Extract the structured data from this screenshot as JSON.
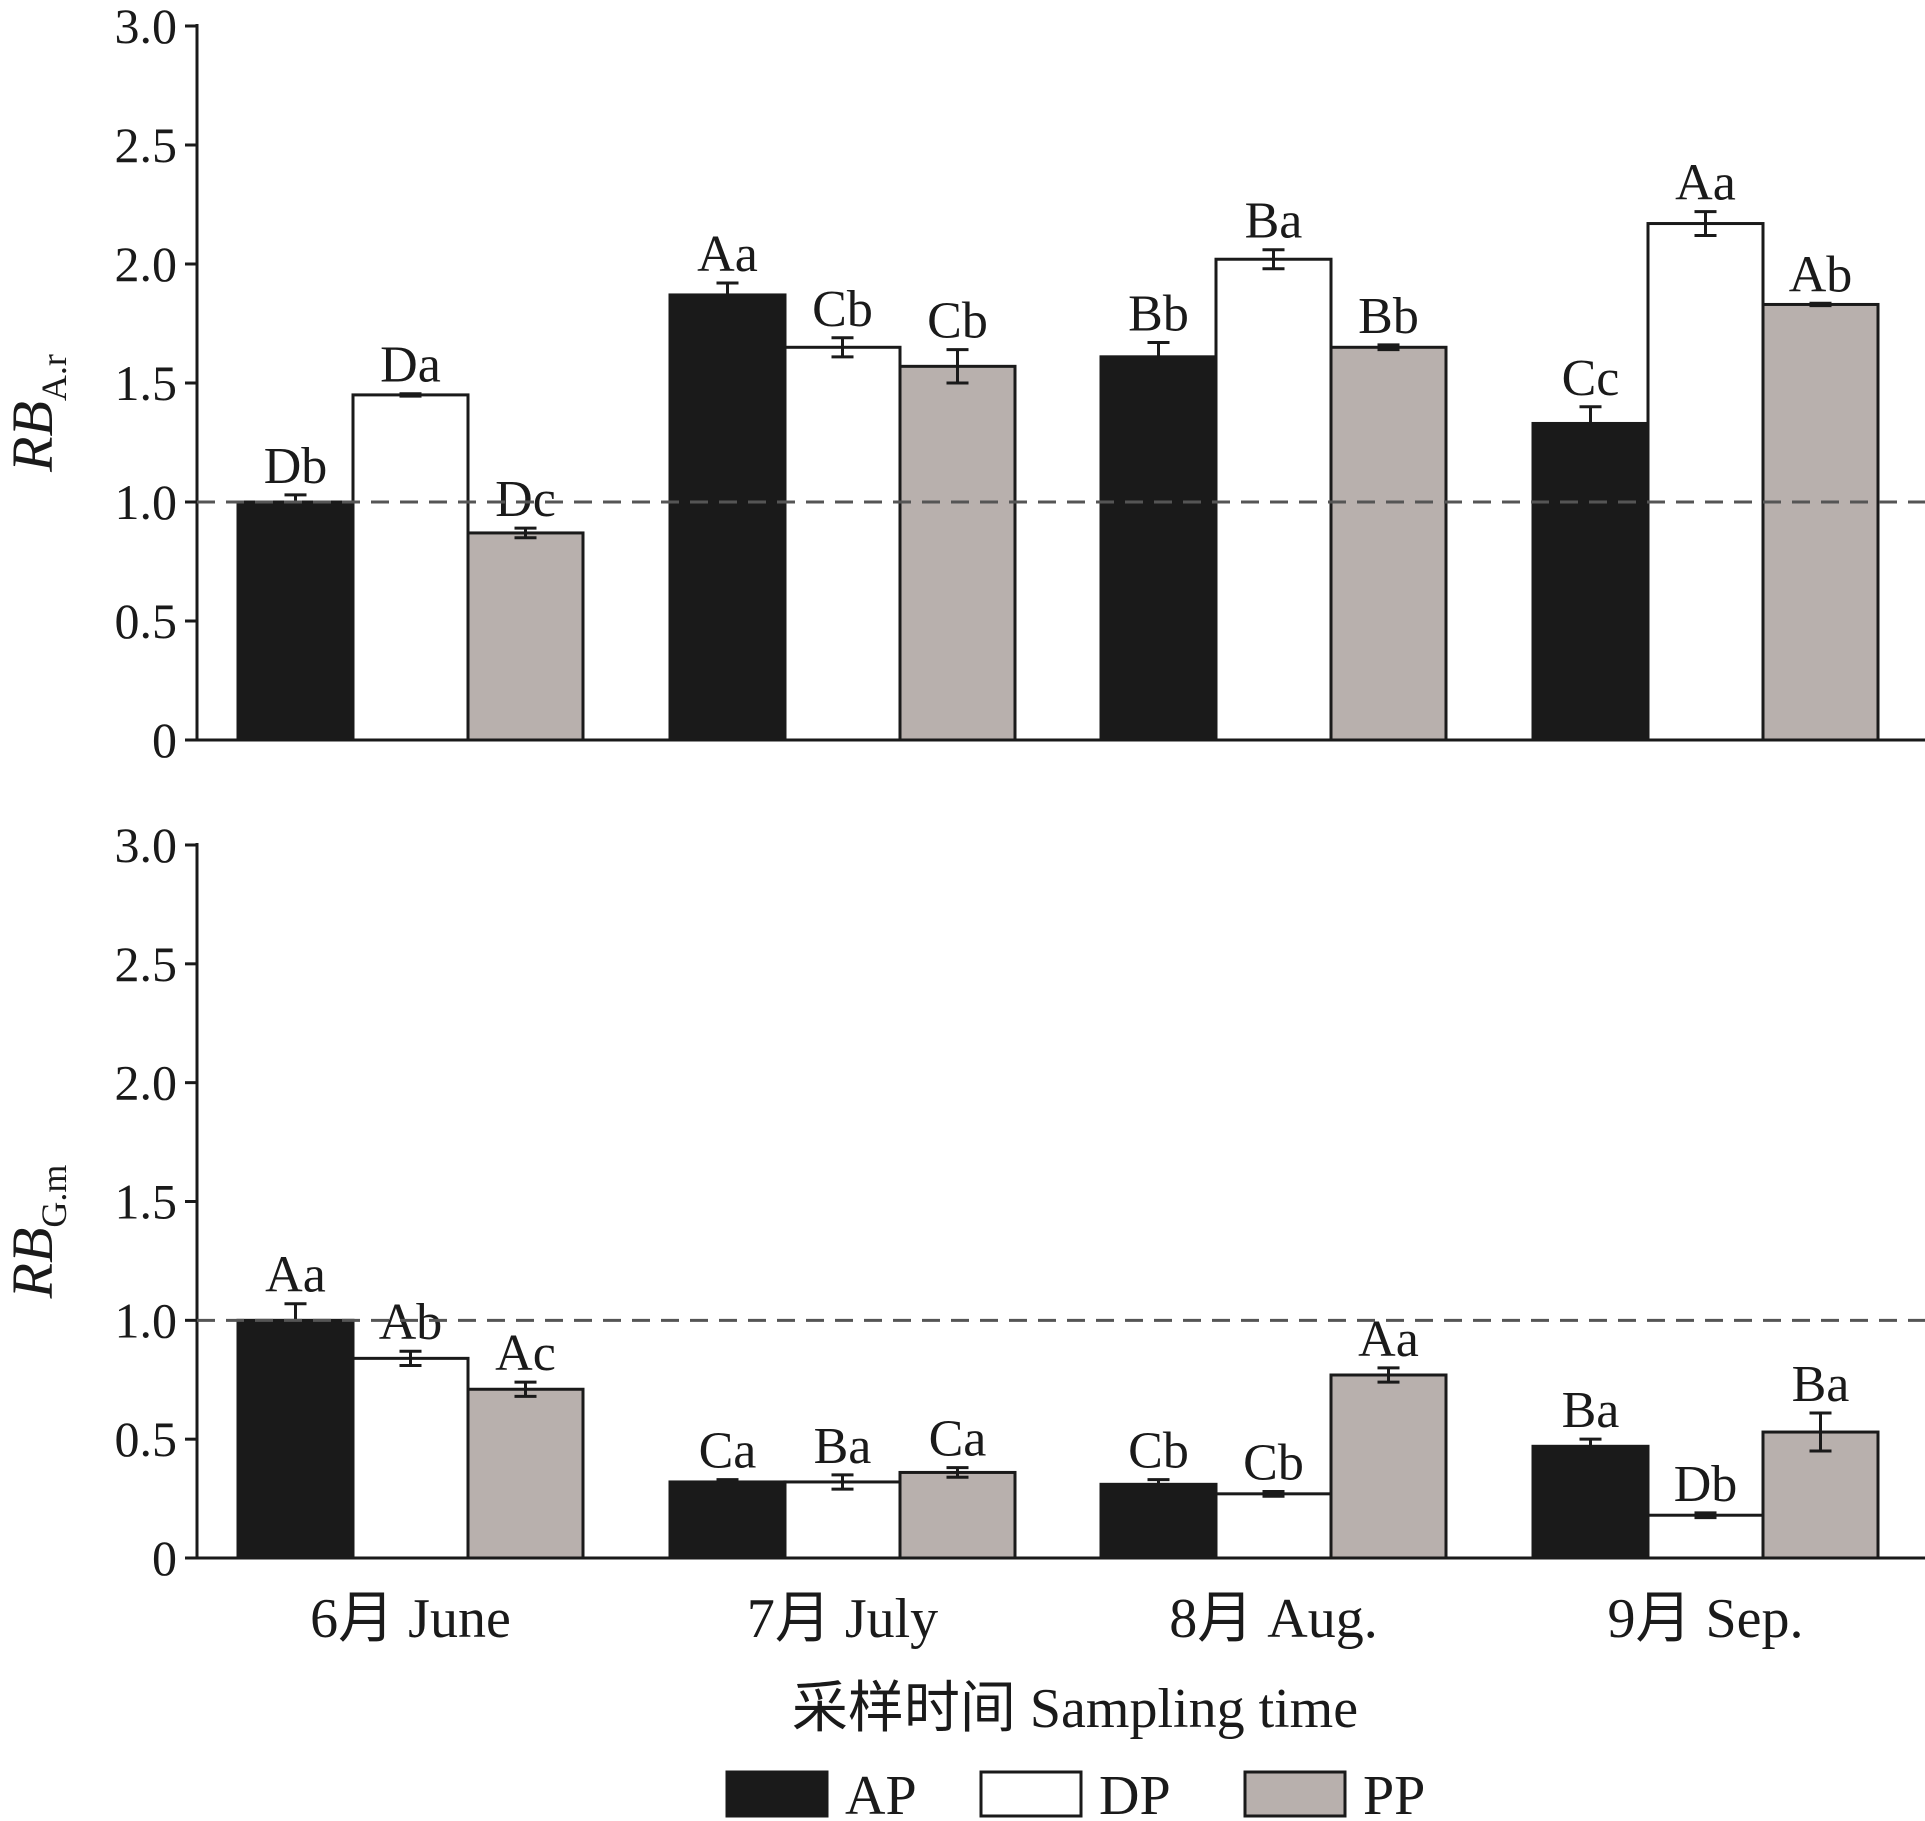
{
  "chart_data": {
    "type": "bar",
    "categories": [
      "6月 June",
      "7月 July",
      "8月 Aug.",
      "9月 Sep."
    ],
    "xlabel": "采样时间 Sampling time",
    "legend": {
      "placement": "bottom",
      "entries": [
        {
          "name": "AP",
          "color": "#1a1a1a"
        },
        {
          "name": "DP",
          "color": "#ffffff"
        },
        {
          "name": "PP",
          "color": "#b8b0ad"
        }
      ]
    },
    "panels": [
      {
        "ylabel": {
          "main": "RB",
          "sub": "A.r"
        },
        "ylim": [
          0,
          3.0
        ],
        "yticks": [
          "0",
          "0.5",
          "1.0",
          "1.5",
          "2.0",
          "2.5",
          "3.0"
        ],
        "reference_line": 1.0,
        "grid": false,
        "series": [
          {
            "name": "AP",
            "values": [
              1.0,
              1.87,
              1.61,
              1.33
            ],
            "errors": [
              0.03,
              0.05,
              0.06,
              0.07
            ],
            "labels": [
              "Db",
              "Aa",
              "Bb",
              "Cc"
            ]
          },
          {
            "name": "DP",
            "values": [
              1.45,
              1.65,
              2.02,
              2.17
            ],
            "errors": [
              0.005,
              0.04,
              0.04,
              0.05
            ],
            "labels": [
              "Da",
              "Cb",
              "Ba",
              "Aa"
            ]
          },
          {
            "name": "PP",
            "values": [
              0.87,
              1.57,
              1.65,
              1.83
            ],
            "errors": [
              0.02,
              0.07,
              0.01,
              0.005
            ],
            "labels": [
              "Dc",
              "Cb",
              "Bb",
              "Ab"
            ]
          }
        ]
      },
      {
        "ylabel": {
          "main": "RB",
          "sub": "G.m"
        },
        "ylim": [
          0,
          3.0
        ],
        "yticks": [
          "0",
          "0.5",
          "1.0",
          "1.5",
          "2.0",
          "2.5",
          "3.0"
        ],
        "reference_line": 1.0,
        "grid": false,
        "series": [
          {
            "name": "AP",
            "values": [
              1.0,
              0.32,
              0.31,
              0.47
            ],
            "errors": [
              0.07,
              0.01,
              0.02,
              0.03
            ],
            "labels": [
              "Aa",
              "Ca",
              "Cb",
              "Ba"
            ]
          },
          {
            "name": "DP",
            "values": [
              0.84,
              0.32,
              0.27,
              0.18
            ],
            "errors": [
              0.03,
              0.03,
              0.01,
              0.01
            ],
            "labels": [
              "Ab",
              "Ba",
              "Cb",
              "Db"
            ]
          },
          {
            "name": "PP",
            "values": [
              0.71,
              0.36,
              0.77,
              0.53
            ],
            "errors": [
              0.03,
              0.02,
              0.03,
              0.08
            ],
            "labels": [
              "Ac",
              "Ca",
              "Aa",
              "Ba"
            ]
          }
        ]
      }
    ]
  }
}
